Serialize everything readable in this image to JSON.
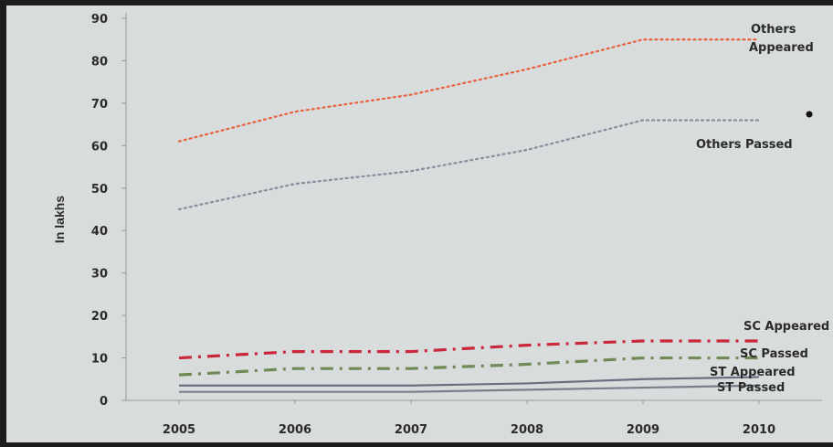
{
  "chart_data": {
    "type": "line",
    "title": "",
    "xlabel": "",
    "ylabel": "In lakhs",
    "categories": [
      "2005",
      "2006",
      "2007",
      "2008",
      "2009",
      "2010"
    ],
    "yticks": [
      "0",
      "10",
      "20",
      "30",
      "40",
      "50",
      "60",
      "70",
      "80",
      "90"
    ],
    "ylim": [
      0,
      90
    ],
    "grid": false,
    "legend": "inline labels at right",
    "series": [
      {
        "name": "Others Appeared",
        "label_lines": [
          "Others",
          "Appeared"
        ],
        "values": [
          61,
          68,
          72,
          78,
          85,
          85
        ],
        "color": "#e8603c",
        "style": "dotted"
      },
      {
        "name": "Others Passed",
        "label_lines": [
          "Others Passed"
        ],
        "values": [
          45,
          51,
          54,
          59,
          66,
          66
        ],
        "color": "#8a8a9a",
        "style": "dotted"
      },
      {
        "name": "SC Appeared",
        "label_lines": [
          "SC Appeared"
        ],
        "values": [
          10,
          11.5,
          11.5,
          13,
          14,
          14
        ],
        "color": "#c8283a",
        "style": "dashdot"
      },
      {
        "name": "SC Passed",
        "label_lines": [
          "SC Passed"
        ],
        "values": [
          6,
          7.5,
          7.5,
          8.5,
          10,
          10
        ],
        "color": "#6f8a55",
        "style": "dashdot"
      },
      {
        "name": "ST Appeared",
        "label_lines": [
          "ST Appeared"
        ],
        "values": [
          3.5,
          3.5,
          3.5,
          4,
          5,
          5.5
        ],
        "color": "#6a6e80",
        "style": "solid"
      },
      {
        "name": "ST Passed",
        "label_lines": [
          "ST Passed"
        ],
        "values": [
          2,
          2,
          2,
          2.5,
          3,
          3.5
        ],
        "color": "#7a7e8a",
        "style": "solid"
      }
    ],
    "annotation_marker": "dot"
  }
}
